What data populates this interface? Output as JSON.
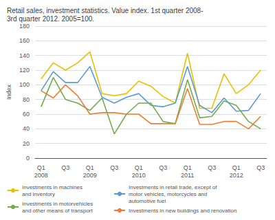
{
  "chart_data": {
    "type": "line",
    "title": "Retail sales, investment statistics. Value index. 1st quarter 2008-\n3rd quarter 2012. 2005=100.",
    "ylabel": "Index",
    "categories": [
      "Q1\n2008",
      null,
      "Q3",
      null,
      "Q1\n2009",
      null,
      "Q3",
      null,
      "Q1\n2010",
      null,
      "Q3",
      null,
      "Q1\n2011",
      null,
      "Q3",
      null,
      "Q1\n2012",
      null,
      "Q3"
    ],
    "series": [
      {
        "name": "Investments in machines\nand inventory",
        "color": "#e8c000",
        "values": [
          108,
          130,
          120,
          130,
          145,
          88,
          85,
          88,
          105,
          98,
          84,
          75,
          143,
          68,
          68,
          115,
          88,
          100,
          120
        ]
      },
      {
        "name": "Investments in retail trade, except of\nmotor vehicles, motorcycles and\nautomotive fuel",
        "color": "#5b9bd5",
        "values": [
          92,
          118,
          103,
          103,
          125,
          83,
          75,
          83,
          88,
          72,
          70,
          75,
          125,
          72,
          62,
          82,
          64,
          65,
          88
        ]
      },
      {
        "name": "Investments in motorvehicles\nand other means of transport",
        "color": "#70ad47",
        "values": [
          70,
          110,
          80,
          75,
          65,
          82,
          33,
          60,
          75,
          75,
          50,
          47,
          107,
          55,
          57,
          78,
          72,
          50,
          40
        ]
      },
      {
        "name": "Investments in new buildings and renovation",
        "color": "#ed7d31",
        "values": [
          92,
          82,
          100,
          85,
          60,
          62,
          62,
          60,
          60,
          47,
          47,
          47,
          95,
          46,
          46,
          50,
          50,
          40,
          57
        ]
      }
    ],
    "ylim": [
      0,
      180
    ],
    "yticks": [
      0,
      20,
      40,
      60,
      80,
      100,
      120,
      140,
      160,
      180
    ],
    "grid": true,
    "legend": "bottom"
  }
}
